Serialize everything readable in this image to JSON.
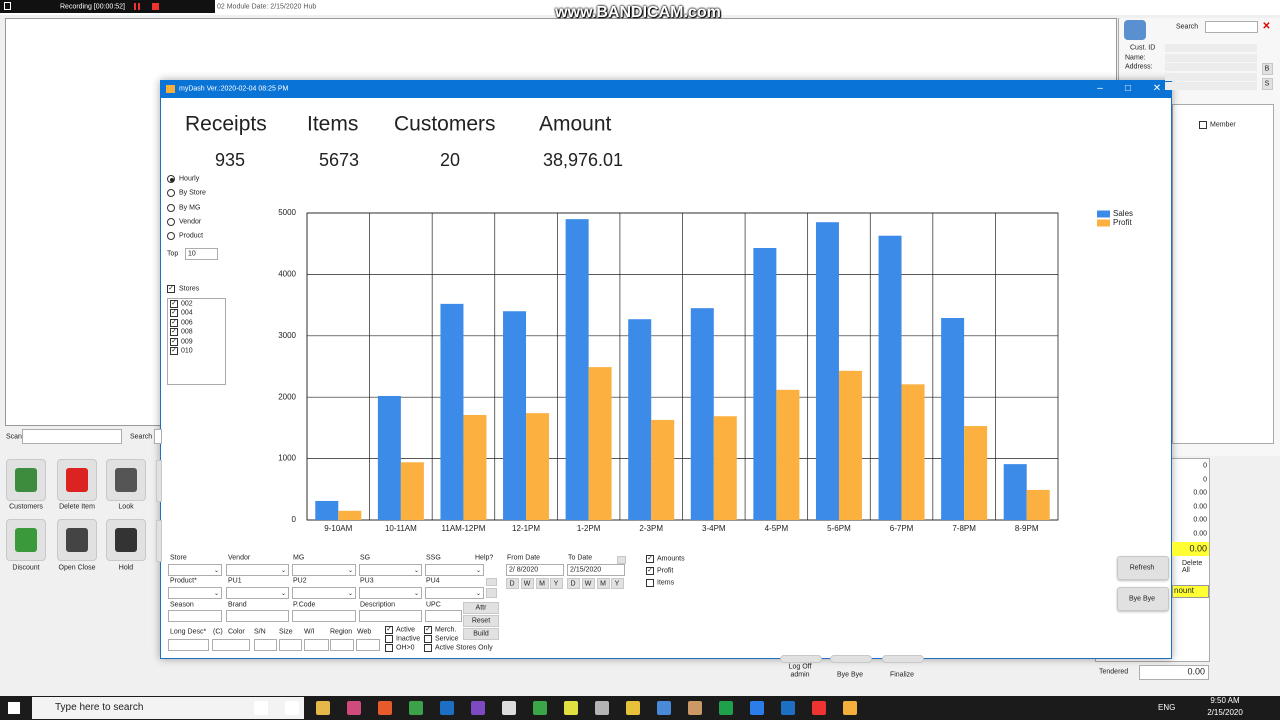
{
  "recorder": {
    "label": "Recording [00:00:52]"
  },
  "watermark": "www.BANDICAM.com",
  "main_window": {
    "title": "02 Module Date: 2/15/2020  Hub",
    "scan": "Scan",
    "search": "Search",
    "buttons": [
      "Customers",
      "Delete Item",
      "Look",
      "Discount",
      "Open Close",
      "Hold"
    ],
    "totals": [
      "0",
      "0",
      "0.00",
      "0.00",
      "0.00",
      "0.00",
      "0.00"
    ],
    "amount_header": "nount",
    "delete_all": "Delete All",
    "footer": {
      "log_off": "Log Off",
      "user": "admin",
      "bye_bye": "Bye Bye",
      "finalize": "Finalize",
      "tendered": "Tendered",
      "tendered_value": "0.00"
    }
  },
  "customer_panel": {
    "search": "Search",
    "cust_id": "Cust. ID",
    "name": "Name:",
    "address": "Address:",
    "b": "B",
    "s": "S",
    "member": "Member"
  },
  "dash": {
    "title": "myDash Ver.:2020-02-04 08:25 PM",
    "kpis": [
      {
        "label": "Receipts",
        "value": "935"
      },
      {
        "label": "Items",
        "value": "5673"
      },
      {
        "label": "Customers",
        "value": "20"
      },
      {
        "label": "Amount",
        "value": "38,976.01"
      }
    ],
    "group_by": [
      "Hourly",
      "By Store",
      "By MG",
      "Vendor",
      "Product"
    ],
    "top_label": "Top",
    "top_value": "10",
    "stores_label": "Stores",
    "stores": [
      "002",
      "004",
      "006",
      "008",
      "009",
      "010"
    ],
    "filters": [
      "Store",
      "Vendor",
      "MG",
      "SG",
      "SSG",
      "Help?",
      "Product*",
      "PU1",
      "PU2",
      "PU3",
      "PU4",
      "Season",
      "Brand",
      "P.Code",
      "Description",
      "UPC",
      "Long Desc*",
      "(C)",
      "Color",
      "S/N",
      "Size",
      "W/I",
      "Region",
      "Web"
    ],
    "filter_buttons": [
      "Attr",
      "Reset",
      "Build"
    ],
    "status_checks": [
      "Active",
      "Inactive",
      "OH>0",
      "Merch.",
      "Service",
      "Active Stores Only"
    ],
    "from_date_label": "From Date",
    "from_date": "2/ 8/2020",
    "to_date_label": "To Date",
    "to_date": "2/15/2020",
    "periods": [
      "D",
      "W",
      "M",
      "Y"
    ],
    "display": [
      "Amounts",
      "Profit",
      "Items"
    ],
    "actions": [
      "Refresh",
      "Bye Bye"
    ]
  },
  "chart_data": {
    "type": "bar",
    "categories": [
      "9-10AM",
      "10-11AM",
      "11AM-12PM",
      "12-1PM",
      "1-2PM",
      "2-3PM",
      "3-4PM",
      "4-5PM",
      "5-6PM",
      "6-7PM",
      "7-8PM",
      "8-9PM"
    ],
    "series": [
      {
        "name": "Sales",
        "color": "#3c8be8",
        "values": [
          310,
          2020,
          3520,
          3400,
          4900,
          3270,
          3450,
          4430,
          4850,
          4630,
          3290,
          910
        ]
      },
      {
        "name": "Profit",
        "color": "#fbb040",
        "values": [
          150,
          940,
          1710,
          1740,
          2490,
          1630,
          1690,
          2120,
          2430,
          2210,
          1530,
          490
        ]
      }
    ],
    "ylim": [
      0,
      5000
    ],
    "yticks": [
      0,
      1000,
      2000,
      3000,
      4000,
      5000
    ],
    "grid": true,
    "legend": "top-right"
  },
  "taskbar": {
    "search": "Type here to search",
    "lang": "ENG",
    "time": "9:50 AM",
    "date": "2/15/2020"
  }
}
